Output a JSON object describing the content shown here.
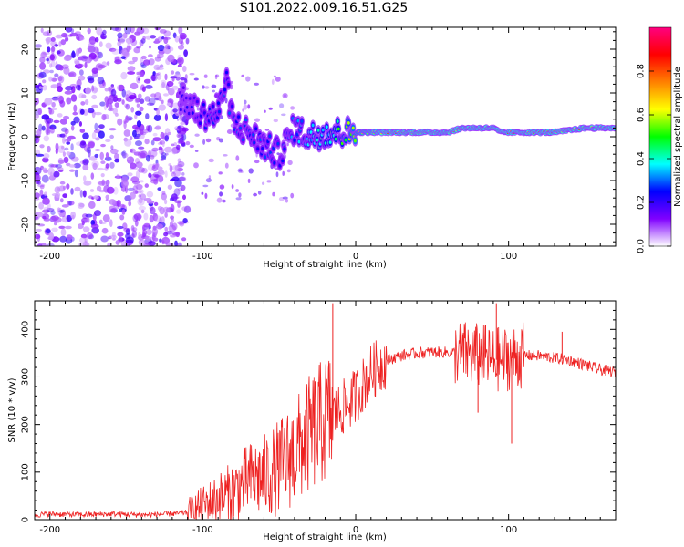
{
  "title": "S101.2022.009.16.51.G25",
  "chart_data": [
    {
      "type": "heatmap",
      "xlabel": "Height of straight line (km)",
      "ylabel": "Frequency (Hz)",
      "xlim": [
        -210,
        170
      ],
      "ylim": [
        -25,
        25
      ],
      "xticks": [
        -200,
        -100,
        0,
        100
      ],
      "yticks": [
        -20,
        -10,
        0,
        10,
        20
      ],
      "colorbar": {
        "label": "Normalized spectral amplitude",
        "range": [
          0,
          1
        ],
        "ticks": [
          0.0,
          0.2,
          0.4,
          0.6,
          0.8
        ],
        "colors": [
          "#ffffff",
          "#8000ff",
          "#0000ff",
          "#00ffff",
          "#00ff00",
          "#ffff00",
          "#ff8000",
          "#ff0000",
          "#ff0080"
        ]
      },
      "ridge": {
        "x": [
          -115,
          -105,
          -100,
          -90,
          -85,
          -80,
          -70,
          -60,
          -50,
          -40,
          -30,
          -20,
          -10,
          0,
          20,
          60,
          70,
          90,
          95,
          100,
          130,
          150,
          170
        ],
        "freq": [
          9,
          6,
          5,
          5,
          13,
          3,
          1,
          -2,
          -4,
          2,
          0,
          1,
          1,
          1,
          1,
          1,
          2,
          2,
          1,
          1,
          1,
          2,
          2
        ],
        "amplitude": [
          0.2,
          0.25,
          0.3,
          0.3,
          0.3,
          0.3,
          0.3,
          0.3,
          0.3,
          0.35,
          0.4,
          0.5,
          0.55,
          0.7,
          0.85,
          0.85,
          0.85,
          0.85,
          0.85,
          0.85,
          0.85,
          0.85,
          0.85
        ]
      },
      "noise_region": [
        -210,
        -120
      ]
    },
    {
      "type": "line",
      "xlabel": "Height of straight line (km)",
      "ylabel": "SNR (10 * v/v)",
      "xlim": [
        -210,
        170
      ],
      "ylim": [
        0,
        460
      ],
      "xticks": [
        -200,
        -100,
        0,
        100
      ],
      "yticks": [
        0,
        100,
        200,
        300,
        400
      ],
      "color": "#ee2222",
      "x": [
        -210,
        -200,
        -180,
        -160,
        -140,
        -120,
        -110,
        -100,
        -90,
        -80,
        -70,
        -60,
        -50,
        -40,
        -30,
        -20,
        -10,
        0,
        10,
        20,
        30,
        40,
        50,
        60,
        70,
        80,
        90,
        100,
        110,
        120,
        130,
        140,
        150,
        160,
        170
      ],
      "y": [
        10,
        12,
        10,
        12,
        10,
        12,
        15,
        30,
        45,
        60,
        85,
        90,
        110,
        140,
        180,
        210,
        230,
        260,
        310,
        335,
        345,
        350,
        352,
        352,
        350,
        345,
        335,
        340,
        345,
        345,
        340,
        335,
        325,
        315,
        310
      ],
      "spikes": [
        {
          "x": -15,
          "y": 455
        },
        {
          "x": 80,
          "y": 225
        },
        {
          "x": 85,
          "y": 410
        },
        {
          "x": 92,
          "y": 455
        },
        {
          "x": 102,
          "y": 160
        },
        {
          "x": 135,
          "y": 395
        }
      ]
    }
  ]
}
